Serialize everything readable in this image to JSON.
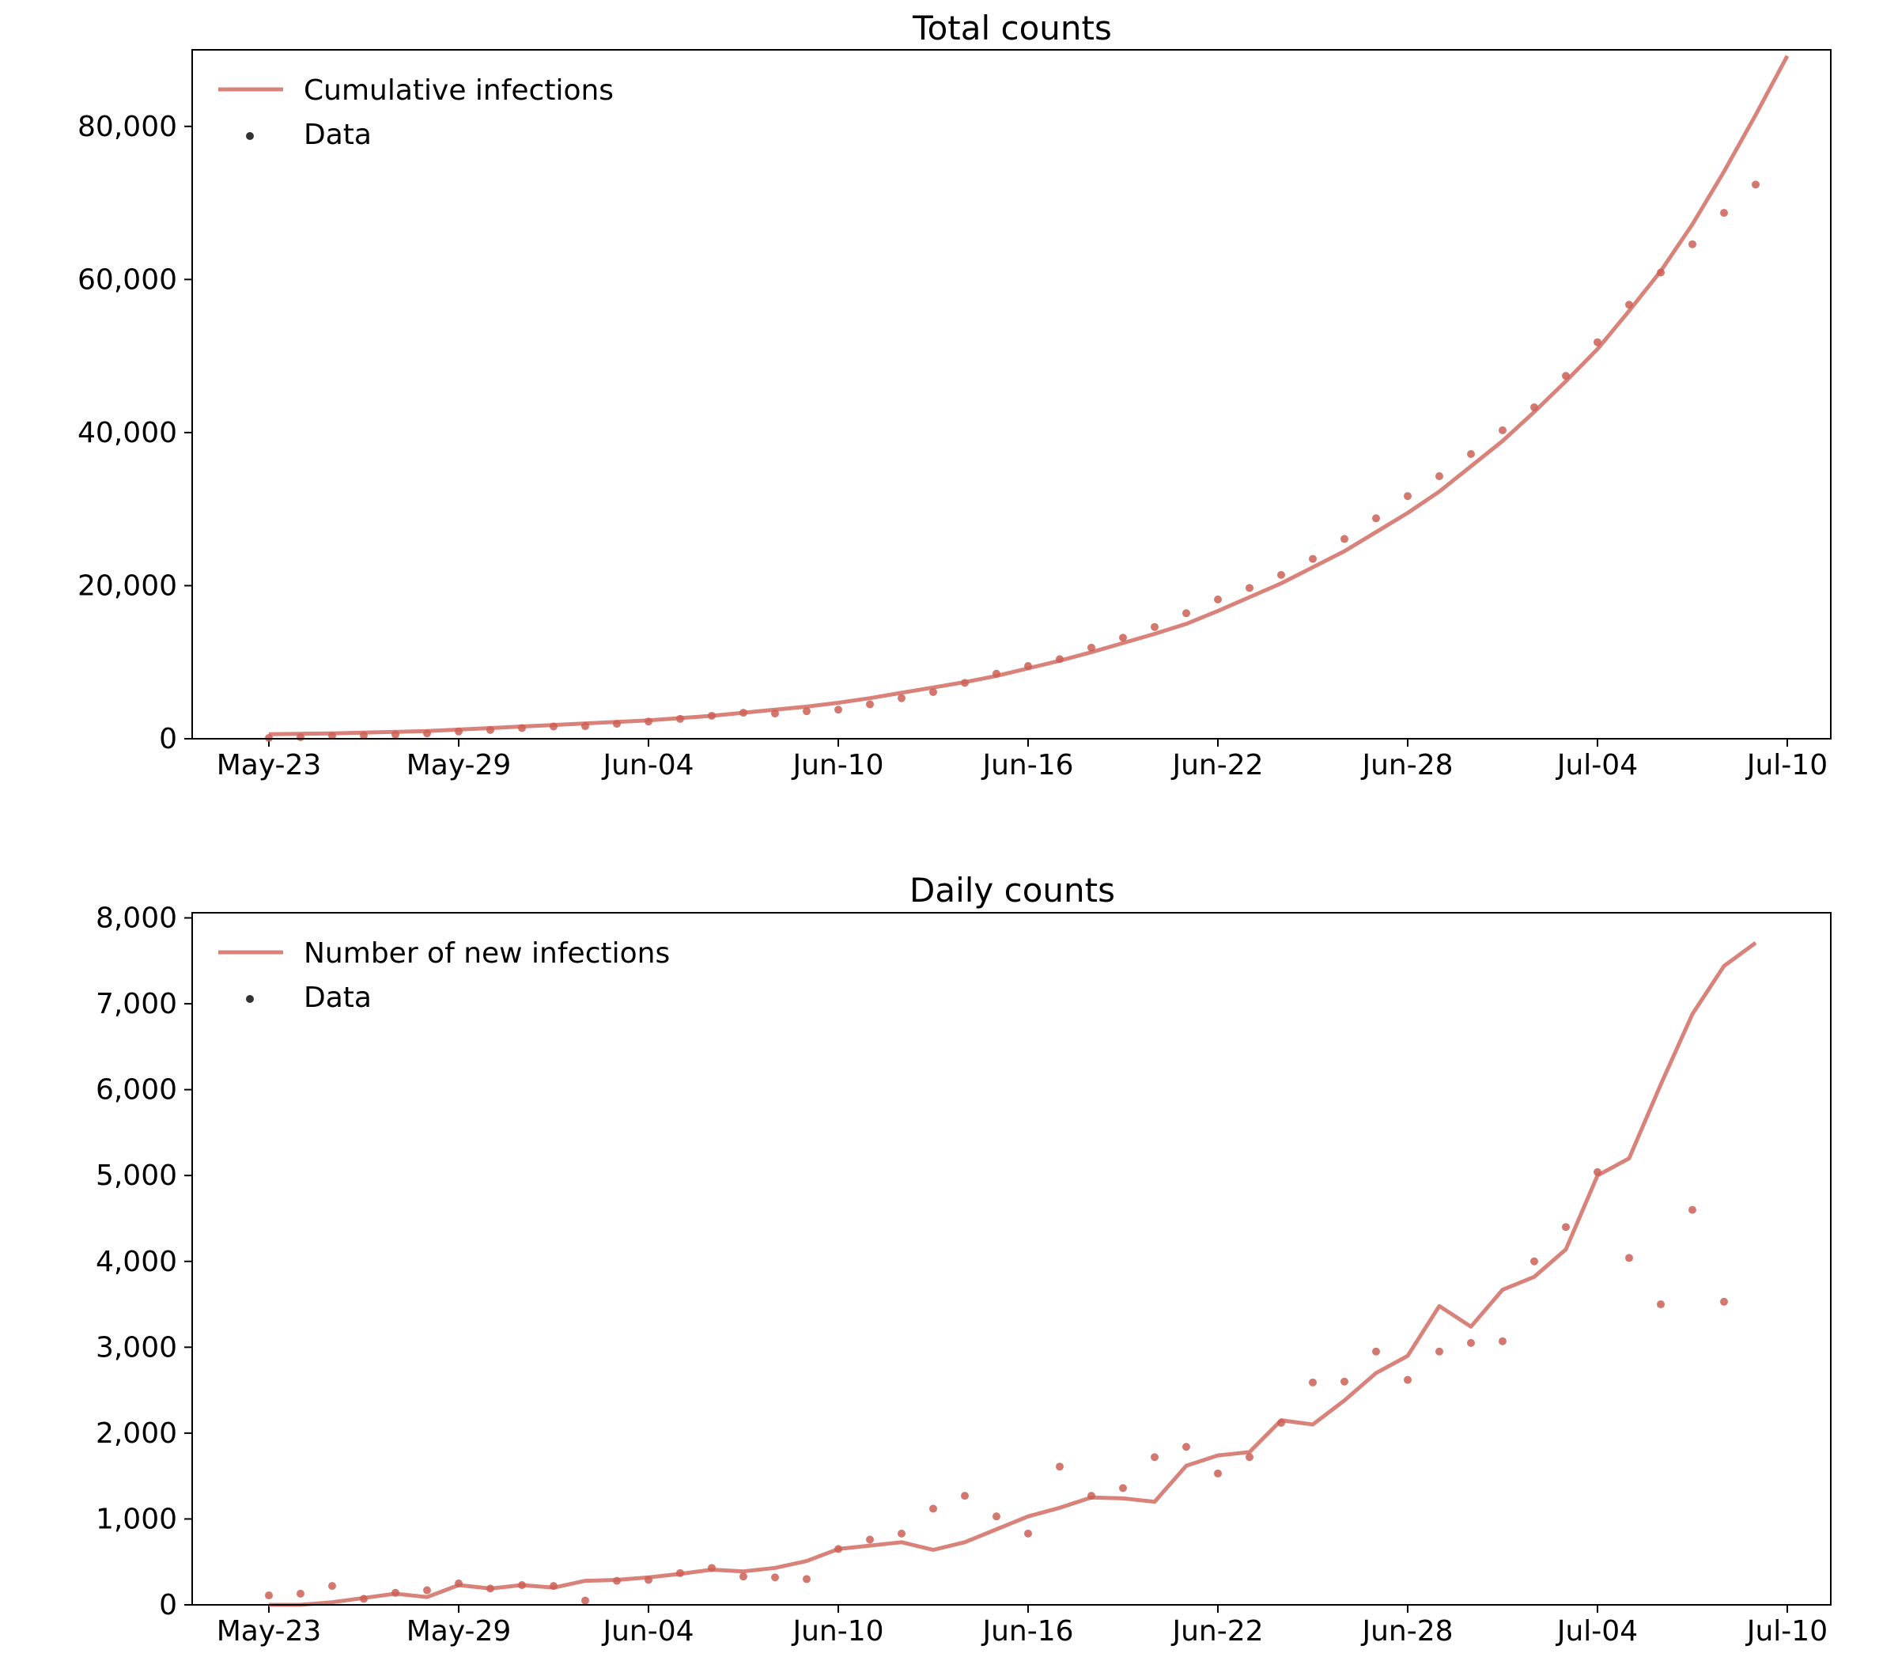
{
  "colors": {
    "model": "#d9827a",
    "data_point": "#cc5f55",
    "legend_marker": "#333333",
    "axis": "#000000"
  },
  "chart_data": [
    {
      "type": "line",
      "title": "Total counts",
      "xlabel": "",
      "ylabel": "",
      "x_start": "May-23",
      "xticks": [
        "May-23",
        "May-29",
        "Jun-04",
        "Jun-10",
        "Jun-16",
        "Jun-22",
        "Jun-28",
        "Jul-04",
        "Jul-10"
      ],
      "ytick_values": [
        0,
        20000,
        40000,
        60000,
        80000
      ],
      "ytick_labels": [
        "0",
        "20,000",
        "40,000",
        "60,000",
        "80,000"
      ],
      "ylim": [
        0,
        90000
      ],
      "legend": {
        "position": "top-left",
        "line_label": "Cumulative infections",
        "marker_label": "Data"
      },
      "series": [
        {
          "name": "Cumulative infections",
          "kind": "line",
          "values": [
            600,
            650,
            700,
            800,
            900,
            1000,
            1200,
            1400,
            1600,
            1800,
            2000,
            2200,
            2400,
            2700,
            3000,
            3400,
            3800,
            4200,
            4700,
            5300,
            6000,
            6700,
            7400,
            8200,
            9200,
            10200,
            11300,
            12500,
            13700,
            15000,
            16700,
            18500,
            20300,
            22400,
            24500,
            27000,
            29500,
            32300,
            35600,
            38900,
            42700,
            46700,
            50900,
            55900,
            61100,
            67200,
            74100,
            81500,
            89200
          ]
        },
        {
          "name": "Data",
          "kind": "scatter",
          "values": [
            100,
            200,
            400,
            450,
            550,
            700,
            950,
            1150,
            1400,
            1600,
            1650,
            1950,
            2250,
            2600,
            3000,
            3400,
            3300,
            3600,
            3800,
            4500,
            5300,
            6100,
            7300,
            8500,
            9500,
            10400,
            11900,
            13200,
            14600,
            16400,
            18200,
            19700,
            21400,
            23500,
            26100,
            28800,
            31700,
            34300,
            37200,
            40300,
            43300,
            47400,
            51800,
            56700,
            60900,
            64600,
            68700,
            72400
          ]
        }
      ]
    },
    {
      "type": "line",
      "title": "Daily counts",
      "xlabel": "",
      "ylabel": "",
      "x_start": "May-23",
      "xticks": [
        "May-23",
        "May-29",
        "Jun-04",
        "Jun-10",
        "Jun-16",
        "Jun-22",
        "Jun-28",
        "Jul-04",
        "Jul-10"
      ],
      "ytick_values": [
        0,
        1000,
        2000,
        3000,
        4000,
        5000,
        6000,
        7000,
        8000
      ],
      "ytick_labels": [
        "0",
        "1,000",
        "2,000",
        "3,000",
        "4,000",
        "5,000",
        "6,000",
        "7,000",
        "8,000"
      ],
      "ylim": [
        0,
        8060
      ],
      "legend": {
        "position": "top-left",
        "line_label": "Number of new infections",
        "marker_label": "Data"
      },
      "series": [
        {
          "name": "Number of new infections",
          "kind": "line",
          "values": [
            0,
            0,
            30,
            80,
            130,
            90,
            230,
            190,
            230,
            200,
            280,
            290,
            320,
            360,
            410,
            390,
            430,
            510,
            650,
            690,
            730,
            640,
            730,
            880,
            1030,
            1130,
            1250,
            1240,
            1200,
            1620,
            1740,
            1780,
            2150,
            2100,
            2380,
            2700,
            2900,
            3480,
            3240,
            3670,
            3820,
            4140,
            5000,
            5200,
            6060,
            6880,
            7440,
            7710
          ]
        },
        {
          "name": "Data",
          "kind": "scatter",
          "values": [
            110,
            130,
            220,
            70,
            140,
            170,
            250,
            190,
            230,
            220,
            50,
            280,
            290,
            370,
            430,
            330,
            320,
            300,
            650,
            760,
            830,
            1120,
            1270,
            1030,
            830,
            1610,
            1270,
            1360,
            1720,
            1840,
            1530,
            1720,
            2120,
            2590,
            2600,
            2950,
            2620,
            2950,
            3050,
            3070,
            4000,
            4400,
            5040,
            4040,
            3500,
            4600,
            3530
          ]
        }
      ]
    }
  ]
}
